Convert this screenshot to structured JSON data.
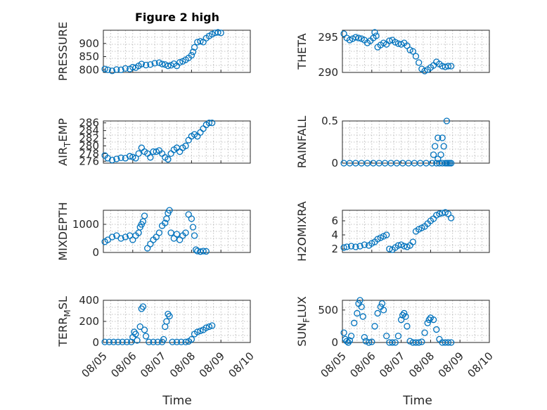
{
  "figure": {
    "title": "Figure 2 high",
    "xlabel": "Time",
    "x_ticks": [
      "08/05",
      "08/06",
      "08/07",
      "08/08",
      "08/09",
      "08/10"
    ],
    "marker_color": "#0072BD"
  },
  "chart_data": [
    {
      "type": "scatter",
      "ylabel": "PRESSURE",
      "ylim": [
        790,
        950
      ],
      "yticks": [
        800,
        850,
        900
      ],
      "x": [
        0.05,
        0.15,
        0.3,
        0.45,
        0.6,
        0.75,
        0.9,
        1.0,
        1.1,
        1.2,
        1.3,
        1.45,
        1.6,
        1.75,
        1.9,
        2.0,
        2.1,
        2.2,
        2.3,
        2.4,
        2.5,
        2.6,
        2.7,
        2.8,
        2.9,
        3.0,
        3.05,
        3.1,
        3.2,
        3.3,
        3.4,
        3.5,
        3.6,
        3.7,
        3.8,
        3.9,
        4.0
      ],
      "y": [
        803,
        800,
        796,
        801,
        800,
        805,
        803,
        810,
        808,
        815,
        822,
        818,
        820,
        825,
        827,
        822,
        820,
        815,
        817,
        823,
        815,
        828,
        832,
        838,
        845,
        855,
        868,
        885,
        905,
        908,
        905,
        920,
        928,
        935,
        940,
        942,
        940
      ]
    },
    {
      "type": "scatter",
      "ylabel": "THETA",
      "ylim": [
        290,
        296
      ],
      "yticks": [
        290,
        295
      ],
      "x": [
        0.05,
        0.15,
        0.25,
        0.35,
        0.45,
        0.55,
        0.65,
        0.75,
        0.85,
        0.95,
        1.05,
        1.1,
        1.15,
        1.2,
        1.3,
        1.4,
        1.5,
        1.6,
        1.7,
        1.8,
        1.9,
        2.0,
        2.1,
        2.2,
        2.3,
        2.4,
        2.5,
        2.6,
        2.7,
        2.8,
        2.9,
        3.0,
        3.1,
        3.2,
        3.3,
        3.4,
        3.5,
        3.6,
        3.7
      ],
      "y": [
        295.5,
        294.9,
        294.6,
        294.8,
        295.0,
        294.9,
        294.8,
        294.6,
        294.2,
        294.5,
        294.9,
        295.7,
        295.2,
        293.6,
        293.9,
        294.2,
        294.0,
        294.5,
        294.6,
        294.3,
        294.1,
        294.0,
        294.2,
        293.8,
        293.2,
        293.0,
        292.3,
        291.4,
        290.5,
        290.2,
        290.4,
        290.7,
        291.0,
        291.5,
        291.2,
        290.9,
        290.8,
        290.9,
        290.9
      ]
    },
    {
      "type": "scatter",
      "ylabel": "AIR_TEMP",
      "ylim": [
        275.5,
        286.5
      ],
      "yticks": [
        276,
        278,
        280,
        282,
        284,
        286
      ],
      "x": [
        0.05,
        0.15,
        0.3,
        0.45,
        0.6,
        0.75,
        0.9,
        1.0,
        1.1,
        1.2,
        1.3,
        1.4,
        1.5,
        1.6,
        1.7,
        1.8,
        1.9,
        2.0,
        2.1,
        2.2,
        2.3,
        2.4,
        2.5,
        2.6,
        2.7,
        2.8,
        2.9,
        3.0,
        3.1,
        3.2,
        3.3,
        3.4,
        3.5,
        3.6,
        3.7
      ],
      "y": [
        277.5,
        276.8,
        276.3,
        276.6,
        276.9,
        276.8,
        277.3,
        277.1,
        276.8,
        278.0,
        279.5,
        278.5,
        278.0,
        277.0,
        278.5,
        278.5,
        278.8,
        278.0,
        277.0,
        276.5,
        278.0,
        279.0,
        279.5,
        278.5,
        279.5,
        280.0,
        281.5,
        282.5,
        283.0,
        282.5,
        283.5,
        284.5,
        285.5,
        286.0,
        286.0
      ]
    },
    {
      "type": "scatter",
      "ylabel": "RAINFALL",
      "ylim": [
        0,
        0.5
      ],
      "yticks": [
        0,
        0.5
      ],
      "x": [
        0.05,
        0.25,
        0.45,
        0.65,
        0.85,
        1.05,
        1.25,
        1.45,
        1.65,
        1.85,
        2.05,
        2.25,
        2.45,
        2.65,
        2.85,
        3.05,
        3.2,
        3.3,
        3.4,
        3.5,
        3.55,
        3.6,
        3.65,
        3.7,
        3.1,
        3.15,
        3.25,
        3.35,
        3.45,
        3.25,
        3.4,
        3.55
      ],
      "y": [
        0,
        0,
        0,
        0,
        0,
        0,
        0,
        0,
        0,
        0,
        0,
        0,
        0,
        0,
        0,
        0,
        0,
        0,
        0,
        0,
        0,
        0,
        0,
        0,
        0.1,
        0.2,
        0.3,
        0.1,
        0.2,
        0.05,
        0.3,
        0.5
      ]
    },
    {
      "type": "scatter",
      "ylabel": "MIXDEPTH",
      "ylim": [
        0,
        1500
      ],
      "yticks": [
        0,
        1000
      ],
      "x": [
        0.05,
        0.15,
        0.3,
        0.45,
        0.6,
        0.75,
        0.9,
        1.0,
        1.1,
        1.2,
        1.25,
        1.3,
        1.35,
        1.4,
        1.5,
        1.6,
        1.7,
        1.8,
        1.9,
        2.0,
        2.1,
        2.15,
        2.2,
        2.25,
        2.3,
        2.4,
        2.5,
        2.6,
        2.7,
        2.8,
        2.9,
        3.0,
        3.05,
        3.1,
        3.15,
        3.2,
        3.3,
        3.4,
        3.5
      ],
      "y": [
        380,
        450,
        550,
        600,
        500,
        550,
        600,
        450,
        600,
        700,
        900,
        1000,
        1100,
        1300,
        150,
        300,
        450,
        550,
        700,
        950,
        1050,
        1200,
        1400,
        1500,
        700,
        500,
        650,
        450,
        600,
        700,
        1350,
        1200,
        900,
        600,
        100,
        50,
        30,
        50,
        40
      ]
    },
    {
      "type": "scatter",
      "ylabel": "H2OMIXRA",
      "ylim": [
        1.5,
        7.5
      ],
      "yticks": [
        2,
        4,
        6
      ],
      "x": [
        0.05,
        0.15,
        0.3,
        0.45,
        0.6,
        0.75,
        0.9,
        1.0,
        1.1,
        1.2,
        1.3,
        1.4,
        1.5,
        1.6,
        1.7,
        1.8,
        1.9,
        2.0,
        2.1,
        2.2,
        2.3,
        2.4,
        2.5,
        2.6,
        2.7,
        2.8,
        2.9,
        3.0,
        3.1,
        3.2,
        3.3,
        3.4,
        3.5,
        3.6,
        3.7
      ],
      "y": [
        2.2,
        2.3,
        2.4,
        2.3,
        2.4,
        2.6,
        2.5,
        2.8,
        3.0,
        3.4,
        3.6,
        3.8,
        4.0,
        2.0,
        1.9,
        2.2,
        2.5,
        2.6,
        2.4,
        2.3,
        2.5,
        3.0,
        4.5,
        4.8,
        5.0,
        5.2,
        5.6,
        6.0,
        6.3,
        6.8,
        7.0,
        7.1,
        7.2,
        7.0,
        6.4
      ]
    },
    {
      "type": "scatter",
      "ylabel": "TERR_MSL",
      "ylim": [
        0,
        400
      ],
      "yticks": [
        0,
        200,
        400
      ],
      "x": [
        0.05,
        0.2,
        0.35,
        0.5,
        0.65,
        0.8,
        0.95,
        1.0,
        1.05,
        1.1,
        1.15,
        1.25,
        1.3,
        1.35,
        1.4,
        1.45,
        1.55,
        1.7,
        1.85,
        2.0,
        2.05,
        2.1,
        2.15,
        2.2,
        2.25,
        2.35,
        2.5,
        2.65,
        2.8,
        2.9,
        3.0,
        3.1,
        3.2,
        3.3,
        3.4,
        3.5,
        3.6,
        3.7
      ],
      "y": [
        5,
        5,
        5,
        5,
        5,
        5,
        5,
        50,
        100,
        80,
        20,
        150,
        320,
        340,
        120,
        60,
        5,
        5,
        5,
        5,
        30,
        150,
        200,
        270,
        250,
        5,
        5,
        5,
        5,
        10,
        30,
        80,
        100,
        110,
        120,
        140,
        150,
        160
      ]
    },
    {
      "type": "scatter",
      "ylabel": "SUN_FLUX",
      "ylim": [
        0,
        650
      ],
      "yticks": [
        0,
        500
      ],
      "x": [
        0.05,
        0.1,
        0.15,
        0.2,
        0.25,
        0.3,
        0.4,
        0.5,
        0.55,
        0.6,
        0.65,
        0.7,
        0.75,
        0.8,
        0.9,
        1.0,
        1.1,
        1.2,
        1.3,
        1.35,
        1.4,
        1.5,
        1.6,
        1.7,
        1.8,
        1.9,
        2.0,
        2.05,
        2.1,
        2.15,
        2.2,
        2.3,
        2.4,
        2.5,
        2.6,
        2.7,
        2.8,
        2.9,
        2.95,
        3.0,
        3.1,
        3.2,
        3.3,
        3.4,
        3.5,
        3.6,
        3.7
      ],
      "y": [
        150,
        50,
        20,
        0,
        30,
        100,
        300,
        450,
        600,
        650,
        550,
        400,
        80,
        20,
        0,
        10,
        250,
        450,
        550,
        600,
        500,
        100,
        0,
        0,
        0,
        100,
        350,
        420,
        450,
        400,
        250,
        20,
        0,
        0,
        0,
        10,
        150,
        300,
        350,
        380,
        350,
        200,
        50,
        0,
        0,
        0,
        0
      ]
    }
  ]
}
